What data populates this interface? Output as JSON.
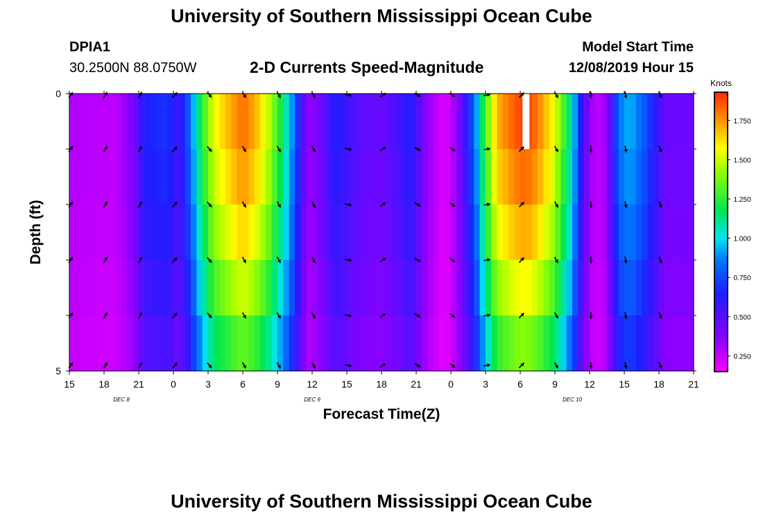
{
  "header": {
    "title_top": "University of Southern Mississippi Ocean Cube",
    "title_bottom": "University of Southern Mississippi Ocean Cube",
    "station_id": "DPIA1",
    "station_coords": "30.2500N 88.0750W",
    "plot_title": "2-D Currents Speed-Magnitude",
    "model_start_label": "Model Start Time",
    "model_start_value": "12/08/2019 Hour 15"
  },
  "chart_data": {
    "type": "heatmap",
    "title": "2-D Currents Speed-Magnitude",
    "xlabel": "Forecast Time(Z)",
    "ylabel": "Depth (ft)",
    "x_ticks": [
      "15",
      "18",
      "21",
      "0",
      "3",
      "6",
      "9",
      "12",
      "15",
      "18",
      "21",
      "0",
      "3",
      "6",
      "9",
      "12",
      "15",
      "18",
      "21"
    ],
    "x_range_hours": [
      0,
      54
    ],
    "y_ticks": [
      "0",
      "5"
    ],
    "y_range": [
      0,
      5
    ],
    "date_labels": [
      {
        "text": "DEC 8",
        "hour": 4.5
      },
      {
        "text": "DEC 9",
        "hour": 21
      },
      {
        "text": "DEC 10",
        "hour": 43.5
      }
    ],
    "colorbar": {
      "unit": "Knots",
      "min": 0.15,
      "max": 1.93,
      "ticks": [
        "0.250",
        "0.500",
        "0.750",
        "1.000",
        "1.250",
        "1.500",
        "1.750"
      ],
      "tick_values": [
        0.25,
        0.5,
        0.75,
        1.0,
        1.25,
        1.5,
        1.75
      ]
    },
    "speed_profile": [
      {
        "t": 0,
        "v": 0.3
      },
      {
        "t": 2,
        "v": 0.28
      },
      {
        "t": 4,
        "v": 0.27
      },
      {
        "t": 5.5,
        "v": 0.4
      },
      {
        "t": 6.5,
        "v": 0.65
      },
      {
        "t": 8.5,
        "v": 0.7
      },
      {
        "t": 9.5,
        "v": 0.55
      },
      {
        "t": 10.5,
        "v": 0.85
      },
      {
        "t": 11.5,
        "v": 1.25
      },
      {
        "t": 12.5,
        "v": 1.55
      },
      {
        "t": 14,
        "v": 1.72
      },
      {
        "t": 15,
        "v": 1.82
      },
      {
        "t": 16,
        "v": 1.72
      },
      {
        "t": 17,
        "v": 1.55
      },
      {
        "t": 18,
        "v": 1.3
      },
      {
        "t": 19,
        "v": 1.0
      },
      {
        "t": 20,
        "v": 0.6
      },
      {
        "t": 20.6,
        "v": 0.35
      },
      {
        "t": 21.5,
        "v": 0.4
      },
      {
        "t": 23,
        "v": 0.65
      },
      {
        "t": 25,
        "v": 0.5
      },
      {
        "t": 27,
        "v": 0.45
      },
      {
        "t": 28.5,
        "v": 0.55
      },
      {
        "t": 29.5,
        "v": 0.65
      },
      {
        "t": 31,
        "v": 0.35
      },
      {
        "t": 32.5,
        "v": 0.2
      },
      {
        "t": 33.5,
        "v": 0.35
      },
      {
        "t": 35,
        "v": 0.8
      },
      {
        "t": 36,
        "v": 1.3
      },
      {
        "t": 37,
        "v": 1.7
      },
      {
        "t": 38.5,
        "v": 1.85
      },
      {
        "t": 39.5,
        "v": 1.9
      },
      {
        "t": 40.5,
        "v": 1.8
      },
      {
        "t": 42,
        "v": 1.55
      },
      {
        "t": 43.5,
        "v": 1.05
      },
      {
        "t": 44.5,
        "v": 0.5
      },
      {
        "t": 45.5,
        "v": 0.25
      },
      {
        "t": 46.5,
        "v": 0.35
      },
      {
        "t": 47.5,
        "v": 0.85
      },
      {
        "t": 48.5,
        "v": 0.95
      },
      {
        "t": 50,
        "v": 0.75
      },
      {
        "t": 51.5,
        "v": 0.45
      },
      {
        "t": 54,
        "v": 0.45
      }
    ],
    "depth_factor": [
      1.0,
      0.96,
      0.9,
      0.82,
      0.72
    ],
    "surface_missing_span": [
      39.2,
      39.8
    ],
    "arrow_times": [
      0,
      3,
      6,
      9,
      12,
      15,
      18,
      21,
      24,
      27,
      30,
      33,
      36,
      39,
      42,
      45,
      48,
      51
    ],
    "arrow_depths": [
      0,
      1,
      2,
      3,
      4,
      5
    ],
    "arrow_directions_deg": [
      35,
      30,
      30,
      40,
      140,
      150,
      150,
      150,
      100,
      55,
      120,
      125,
      80,
      45,
      150,
      175,
      170,
      160
    ]
  }
}
